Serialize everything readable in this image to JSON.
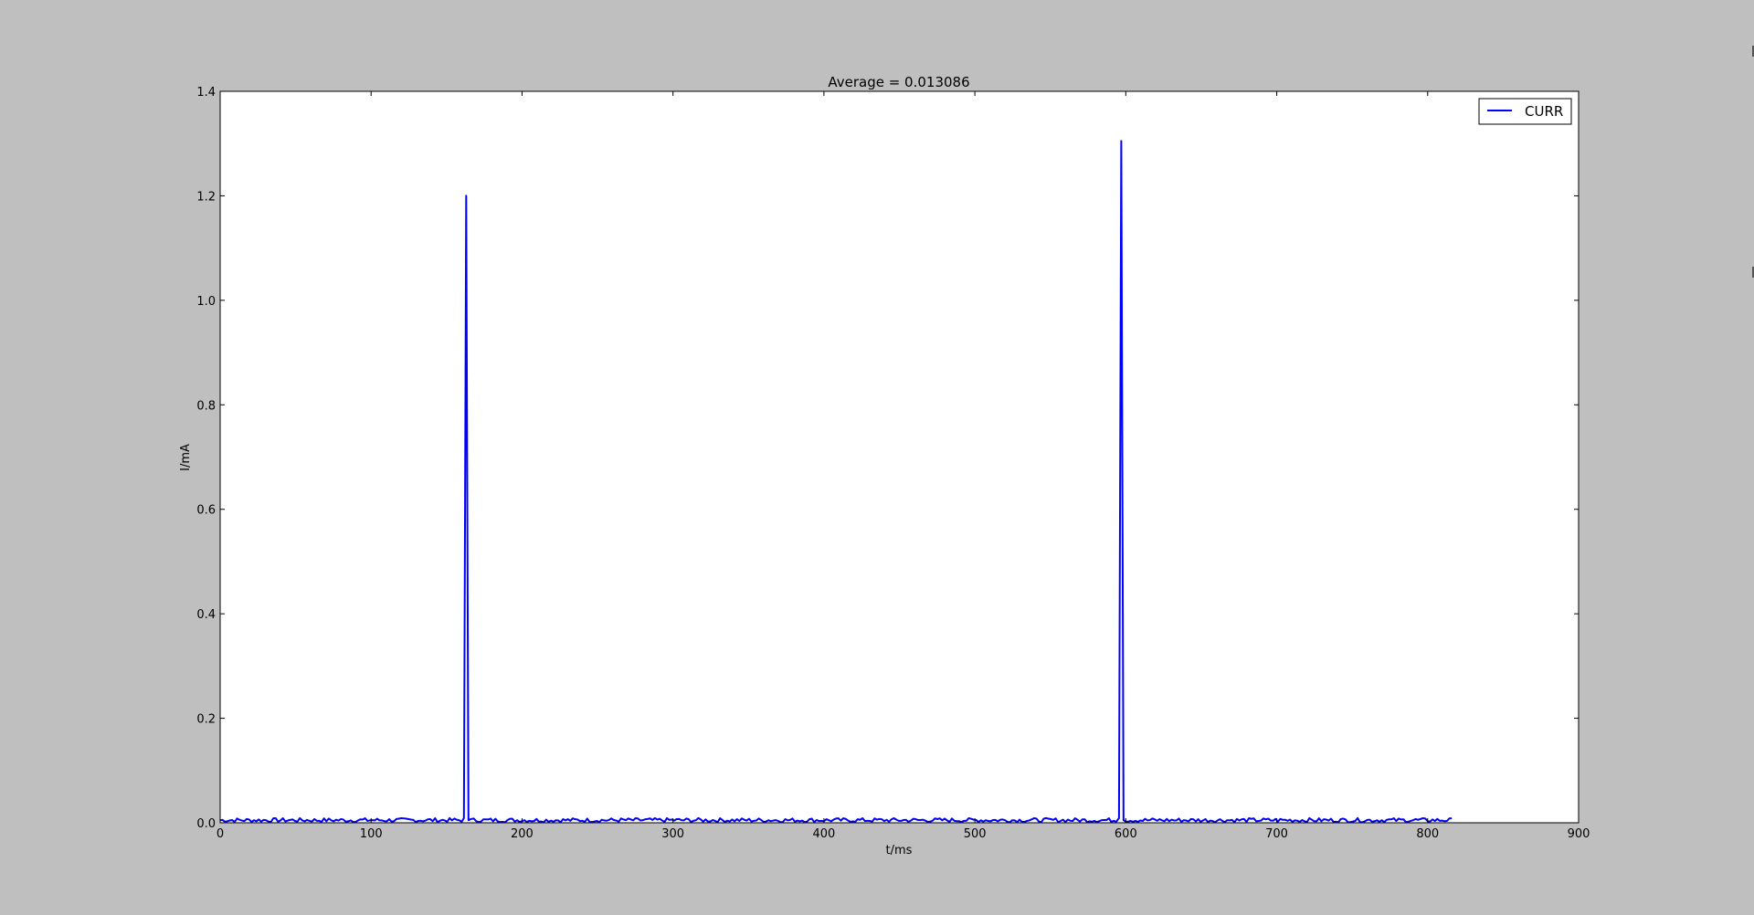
{
  "colors": {
    "figure_background": "#bfbfbf",
    "plot_background": "#ffffff",
    "series_line": "#0000ff",
    "axes": "#000000"
  },
  "chart_data": {
    "type": "line",
    "title": "Average = 0.013086",
    "xlabel": "t/ms",
    "ylabel": "I/mA",
    "xlim": [
      0,
      900
    ],
    "ylim": [
      0,
      1.4
    ],
    "xticks": [
      0,
      100,
      200,
      300,
      400,
      500,
      600,
      700,
      800,
      900
    ],
    "yticks": [
      0.0,
      0.2,
      0.4,
      0.6,
      0.8,
      1.0,
      1.2,
      1.4
    ],
    "xtick_labels": [
      "0",
      "100",
      "200",
      "300",
      "400",
      "500",
      "600",
      "700",
      "800",
      "900"
    ],
    "ytick_labels": [
      "0.0",
      "0.2",
      "0.4",
      "0.6",
      "0.8",
      "1.0",
      "1.2",
      "1.4"
    ],
    "grid": false,
    "legend": {
      "position": "top-right",
      "entries": [
        "CURR"
      ]
    },
    "series": [
      {
        "name": "CURR",
        "baseline_min": 0.001,
        "baseline_max": 0.009,
        "x_end": 817,
        "peaks": [
          {
            "x": 163,
            "y": 1.2
          },
          {
            "x": 597,
            "y": 1.305
          }
        ]
      }
    ]
  }
}
